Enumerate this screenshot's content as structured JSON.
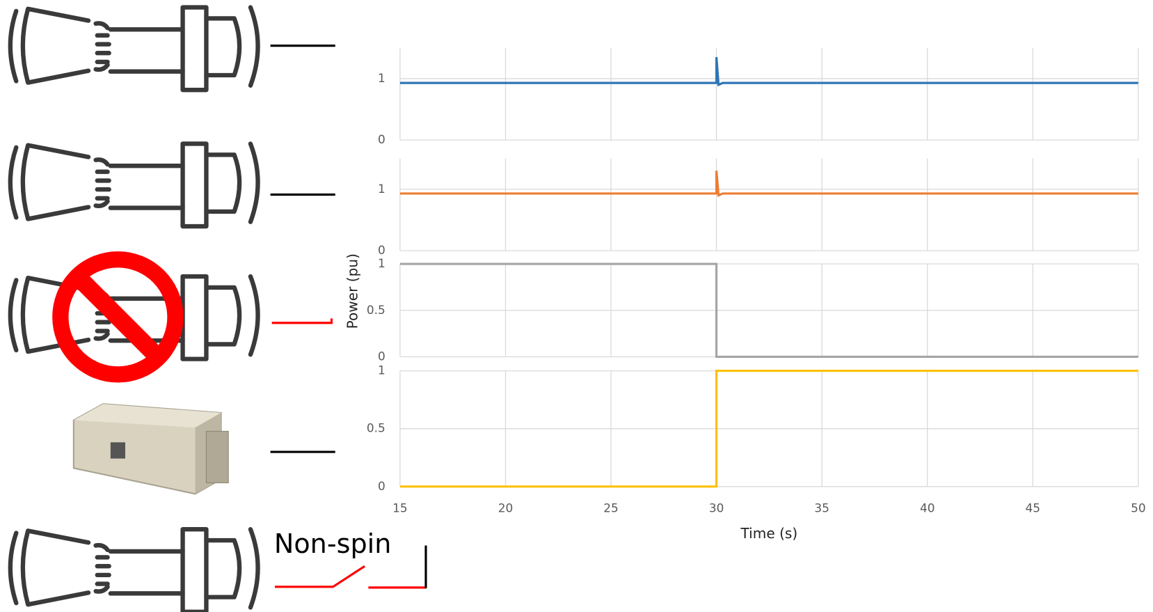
{
  "figure": {
    "ylabel": "Power (pu)",
    "annotation": "Non-spin"
  },
  "chart_data": [
    {
      "type": "line",
      "x": [
        15,
        30,
        30,
        30.1,
        30.3,
        50
      ],
      "values": [
        0.93,
        0.93,
        1.35,
        0.9,
        0.93,
        0.93
      ],
      "color": "#2e75b6",
      "xlim": [
        15,
        50
      ],
      "xticks": [
        15,
        20,
        25,
        30,
        35,
        40,
        45,
        50
      ],
      "ylim": [
        0,
        1.5
      ],
      "yticks": [
        0,
        1
      ],
      "grid": true
    },
    {
      "type": "line",
      "x": [
        15,
        30,
        30,
        30.1,
        30.3,
        50
      ],
      "values": [
        0.93,
        0.93,
        1.3,
        0.9,
        0.93,
        0.93
      ],
      "color": "#ed7d31",
      "xlim": [
        15,
        50
      ],
      "xticks": [
        15,
        20,
        25,
        30,
        35,
        40,
        45,
        50
      ],
      "ylim": [
        0,
        1.5
      ],
      "yticks": [
        0,
        1
      ],
      "grid": true
    },
    {
      "type": "line",
      "x": [
        15,
        30,
        30,
        50
      ],
      "values": [
        1,
        1,
        0,
        0
      ],
      "color": "#a5a5a5",
      "xlim": [
        15,
        50
      ],
      "xticks": [
        15,
        20,
        25,
        30,
        35,
        40,
        45,
        50
      ],
      "ylim": [
        0,
        1
      ],
      "yticks": [
        0,
        0.5,
        1
      ],
      "grid": true
    },
    {
      "type": "line",
      "x": [
        15,
        30,
        30,
        50
      ],
      "values": [
        0,
        0,
        1,
        1
      ],
      "color": "#ffc000",
      "xlim": [
        15,
        50
      ],
      "xticks": [
        15,
        20,
        25,
        30,
        35,
        40,
        45,
        50
      ],
      "ylim": [
        0,
        1
      ],
      "yticks": [
        0,
        0.5,
        1
      ],
      "grid": true,
      "xlabel": "Time (s)"
    }
  ]
}
